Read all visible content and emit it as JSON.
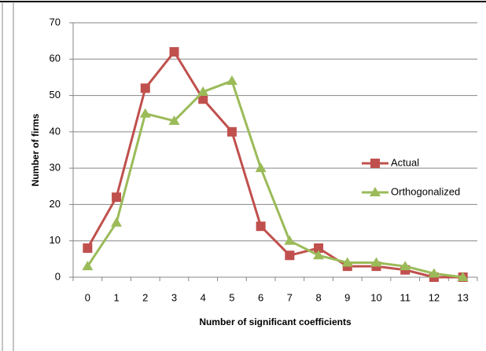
{
  "chart_data": {
    "type": "line",
    "xlabel": "Number of significant coefficients",
    "ylabel": "Number of firms",
    "categories": [
      "0",
      "1",
      "2",
      "3",
      "4",
      "5",
      "6",
      "7",
      "8",
      "9",
      "10",
      "11",
      "12",
      "13"
    ],
    "series": [
      {
        "name": "Actual",
        "color": "#c0504d",
        "marker": "square",
        "values": [
          8,
          22,
          52,
          62,
          49,
          40,
          14,
          6,
          8,
          3,
          3,
          2,
          0,
          0
        ]
      },
      {
        "name": "Orthogonalized",
        "color": "#9bbb59",
        "marker": "triangle",
        "values": [
          3,
          15,
          45,
          43,
          51,
          54,
          30,
          10,
          6,
          4,
          4,
          3,
          1,
          0
        ]
      }
    ],
    "ylim": [
      0,
      70
    ],
    "yticks": [
      0,
      10,
      20,
      30,
      40,
      50,
      60,
      70
    ],
    "grid": true,
    "legend": "right"
  }
}
